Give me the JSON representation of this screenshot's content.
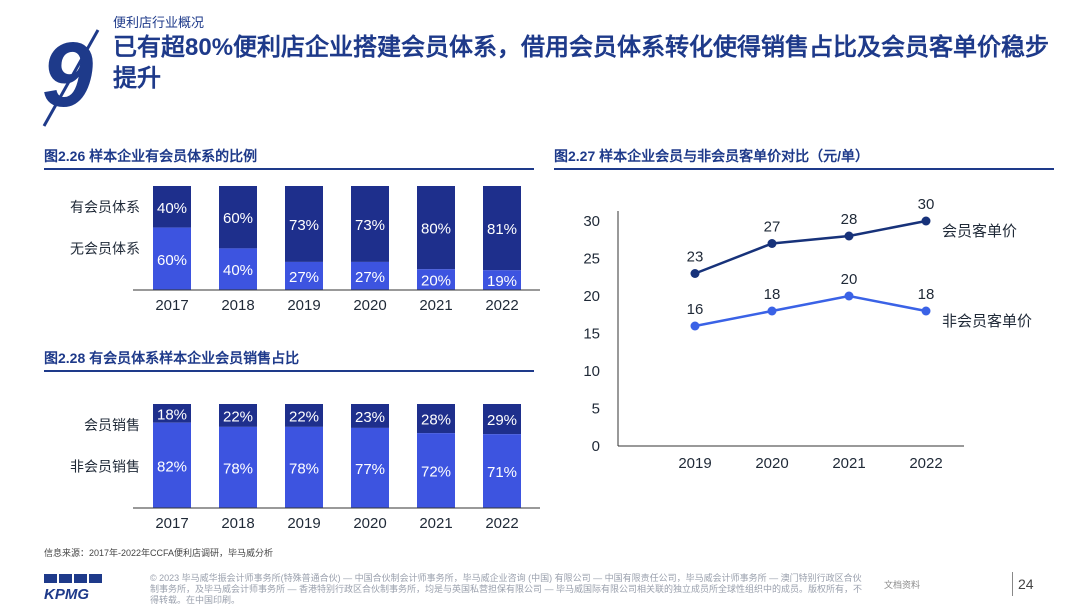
{
  "header": {
    "section": "便利店行业概况",
    "title": "已有超80%便利店企业搭建会员体系，借用会员体系转化使得销售占比及会员客单价稳步提升",
    "number": "9"
  },
  "colors": {
    "dark": "#1e2f8c",
    "bright": "#3d54e0",
    "line_dark": "#17327a",
    "line_light": "#3a62e6"
  },
  "chart_data": [
    {
      "id": "fig226",
      "type": "bar",
      "stacked": true,
      "percent": true,
      "title": "图2.26 样本企业有会员体系的比例",
      "categories": [
        "2017",
        "2018",
        "2019",
        "2020",
        "2021",
        "2022"
      ],
      "series": [
        {
          "name": "有会员体系",
          "values": [
            40,
            60,
            73,
            73,
            80,
            81
          ],
          "labels": [
            "40%",
            "60%",
            "73%",
            "73%",
            "80%",
            "81%"
          ]
        },
        {
          "name": "无会员体系",
          "values": [
            60,
            40,
            27,
            27,
            20,
            19
          ],
          "labels": [
            "60%",
            "40%",
            "27%",
            "27%",
            "20%",
            "19%"
          ]
        }
      ],
      "ylim": [
        0,
        100
      ]
    },
    {
      "id": "fig228",
      "type": "bar",
      "stacked": true,
      "percent": true,
      "title": "图2.28 有会员体系样本企业会员销售占比",
      "categories": [
        "2017",
        "2018",
        "2019",
        "2020",
        "2021",
        "2022"
      ],
      "series": [
        {
          "name": "会员销售",
          "values": [
            18,
            22,
            22,
            23,
            28,
            29
          ],
          "labels": [
            "18%",
            "22%",
            "22%",
            "23%",
            "28%",
            "29%"
          ]
        },
        {
          "name": "非会员销售",
          "values": [
            82,
            78,
            78,
            77,
            72,
            71
          ],
          "labels": [
            "82%",
            "78%",
            "78%",
            "77%",
            "72%",
            "71%"
          ]
        }
      ],
      "ylim": [
        0,
        100
      ]
    },
    {
      "id": "fig227",
      "type": "line",
      "title": "图2.27 样本企业会员与非会员客单价对比（元/单）",
      "categories": [
        "2019",
        "2020",
        "2021",
        "2022"
      ],
      "series": [
        {
          "name": "会员客单价",
          "values": [
            23,
            27,
            28,
            30
          ]
        },
        {
          "name": "非会员客单价",
          "values": [
            16,
            18,
            20,
            18
          ]
        }
      ],
      "ylim": [
        0,
        30
      ],
      "yticks": [
        "0",
        "5",
        "10",
        "15",
        "20",
        "25",
        "30"
      ],
      "ytick_values": [
        0,
        5,
        10,
        15,
        20,
        25,
        30
      ]
    }
  ],
  "footer": {
    "source": "信息来源：2017年-2022年CCFA便利店调研，毕马威分析",
    "copyright": "© 2023 毕马威华振会计师事务所(特殊普通合伙) — 中国合伙制会计师事务所，毕马威企业咨询 (中国) 有限公司 — 中国有限责任公司，毕马威会计师事务所 — 澳门特别行政区合伙制事务所，及毕马威会计师事务所 — 香港特别行政区合伙制事务所，均是与英国私营担保有限公司 — 毕马威国际有限公司相关联的独立成员所全球性组织中的成员。版权所有，不得转载。在中国印刷。",
    "logo": "KPMG",
    "watermark": "文档资料",
    "page": "24"
  }
}
